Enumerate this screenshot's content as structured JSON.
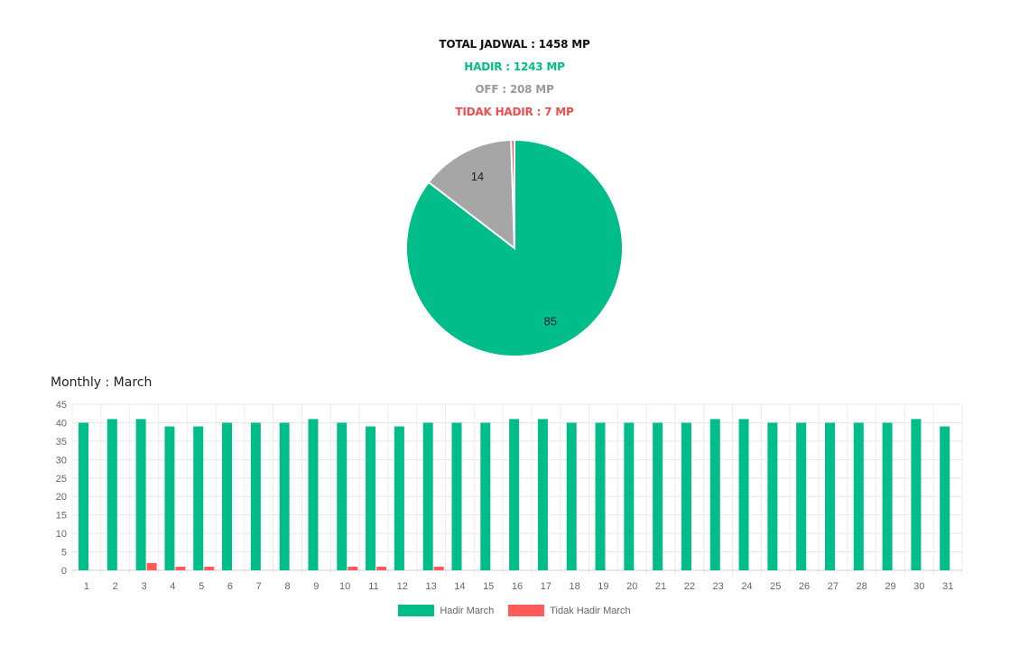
{
  "summary": {
    "total": "TOTAL JADWAL : 1458 MP",
    "hadir": "HADIR : 1243 MP",
    "off": "OFF : 208 MP",
    "tidak_hadir": "TIDAK HADIR : 7 MP"
  },
  "colors": {
    "hadir": "#00bd8a",
    "off": "#a6a6a6",
    "tidak_hadir": "#ff5b5b"
  },
  "monthly_title": "Monthly : March",
  "chart_data": [
    {
      "type": "pie",
      "slices": [
        {
          "label": "HADIR",
          "value": 85,
          "color": "#00bd8a"
        },
        {
          "label": "OFF",
          "value": 14,
          "color": "#a6a6a6"
        },
        {
          "label": "TIDAK HADIR",
          "value": 0.5,
          "color": "#ff5b5b"
        }
      ],
      "data_labels": [
        "85",
        "14"
      ]
    },
    {
      "type": "bar",
      "categories": [
        "1",
        "2",
        "3",
        "4",
        "5",
        "6",
        "7",
        "8",
        "9",
        "10",
        "11",
        "12",
        "13",
        "14",
        "15",
        "16",
        "17",
        "18",
        "19",
        "20",
        "21",
        "22",
        "23",
        "24",
        "25",
        "26",
        "27",
        "28",
        "29",
        "30",
        "31"
      ],
      "series": [
        {
          "name": "Hadir March",
          "color": "#00bd8a",
          "values": [
            40,
            41,
            41,
            39,
            39,
            40,
            40,
            40,
            41,
            40,
            39,
            39,
            40,
            40,
            40,
            41,
            41,
            40,
            40,
            40,
            40,
            40,
            41,
            41,
            40,
            40,
            40,
            40,
            40,
            41,
            39
          ]
        },
        {
          "name": "Tidak Hadir March",
          "color": "#ff5b5b",
          "values": [
            0,
            0,
            2,
            1,
            1,
            0,
            0,
            0,
            0,
            1,
            1,
            0,
            1,
            0,
            0,
            0,
            0,
            0,
            0,
            0,
            0,
            0,
            0,
            0,
            0,
            0,
            0,
            0,
            0,
            0,
            0
          ]
        }
      ],
      "ylim": [
        0,
        45
      ],
      "yticks": [
        0,
        5,
        10,
        15,
        20,
        25,
        30,
        35,
        40,
        45
      ],
      "grid": true,
      "legend": "bottom-center"
    }
  ]
}
